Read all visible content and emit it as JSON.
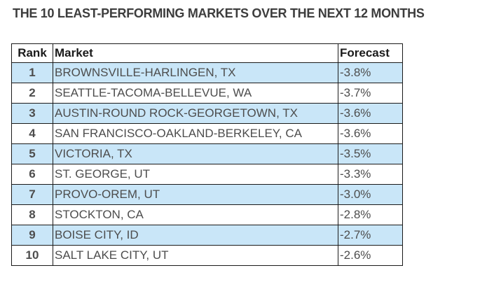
{
  "page": {
    "title": "THE 10 LEAST-PERFORMING MARKETS OVER THE NEXT 12 MONTHS"
  },
  "table": {
    "columns": [
      {
        "key": "rank",
        "label": "Rank"
      },
      {
        "key": "market",
        "label": "Market"
      },
      {
        "key": "forecast",
        "label": "Forecast"
      }
    ],
    "rows": [
      {
        "rank": "1",
        "market": "BROWNSVILLE-HARLINGEN, TX",
        "forecast": "-3.8%"
      },
      {
        "rank": "2",
        "market": "SEATTLE-TACOMA-BELLEVUE, WA",
        "forecast": "-3.7%"
      },
      {
        "rank": "3",
        "market": "AUSTIN-ROUND ROCK-GEORGETOWN, TX",
        "forecast": "-3.6%"
      },
      {
        "rank": "4",
        "market": "SAN FRANCISCO-OAKLAND-BERKELEY, CA",
        "forecast": "-3.6%"
      },
      {
        "rank": "5",
        "market": "VICTORIA, TX",
        "forecast": "-3.5%"
      },
      {
        "rank": "6",
        "market": "ST. GEORGE, UT",
        "forecast": "-3.3%"
      },
      {
        "rank": "7",
        "market": "PROVO-OREM, UT",
        "forecast": "-3.0%"
      },
      {
        "rank": "8",
        "market": "STOCKTON, CA",
        "forecast": "-2.8%"
      },
      {
        "rank": "9",
        "market": "BOISE CITY, ID",
        "forecast": "-2.7%"
      },
      {
        "rank": "10",
        "market": "SALT LAKE CITY, UT",
        "forecast": "-2.6%"
      }
    ]
  },
  "colors": {
    "row_highlight": "#c9e6f8",
    "border": "#1a1a1a",
    "title_text": "#3d3d3d",
    "header_text": "#1a1a1a",
    "cell_text": "#4d4d4d"
  },
  "chart_data": {
    "type": "table",
    "title": "THE 10 LEAST-PERFORMING MARKETS OVER THE NEXT 12 MONTHS",
    "columns": [
      "Rank",
      "Market",
      "Forecast"
    ],
    "rows": [
      [
        1,
        "BROWNSVILLE-HARLINGEN, TX",
        "-3.8%"
      ],
      [
        2,
        "SEATTLE-TACOMA-BELLEVUE, WA",
        "-3.7%"
      ],
      [
        3,
        "AUSTIN-ROUND ROCK-GEORGETOWN, TX",
        "-3.6%"
      ],
      [
        4,
        "SAN FRANCISCO-OAKLAND-BERKELEY, CA",
        "-3.6%"
      ],
      [
        5,
        "VICTORIA, TX",
        "-3.5%"
      ],
      [
        6,
        "ST. GEORGE, UT",
        "-3.3%"
      ],
      [
        7,
        "PROVO-OREM, UT",
        "-3.0%"
      ],
      [
        8,
        "STOCKTON, CA",
        "-2.8%"
      ],
      [
        9,
        "BOISE CITY, ID",
        "-2.7%"
      ],
      [
        10,
        "SALT LAKE CITY, UT",
        "-2.6%"
      ]
    ],
    "forecast_values_pct": [
      -3.8,
      -3.7,
      -3.6,
      -3.6,
      -3.5,
      -3.3,
      -3.0,
      -2.8,
      -2.7,
      -2.6
    ],
    "layout": {
      "striped_rows": "odd rows highlighted light blue",
      "grid": "on"
    }
  }
}
